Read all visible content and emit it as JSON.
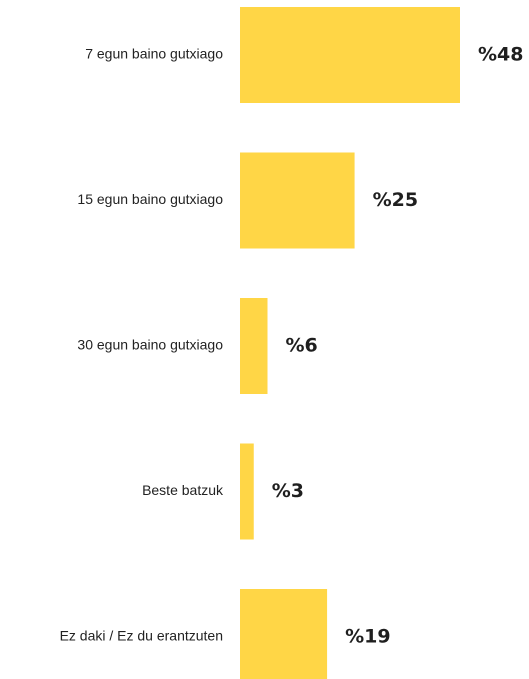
{
  "chart_data": {
    "type": "bar",
    "orientation": "horizontal",
    "categories": [
      "7 egun baino gutxiago",
      "15 egun baino gutxiago",
      "30 egun baino gutxiago",
      "Beste batzuk",
      "Ez daki / Ez du erantzuten"
    ],
    "values": [
      48,
      25,
      6,
      3,
      19
    ],
    "value_labels": [
      "%48",
      "%25",
      "%6",
      "%3",
      "%19"
    ],
    "title": "",
    "xlabel": "",
    "ylabel": "",
    "xlim": [
      0,
      48
    ],
    "grid": false,
    "legend": "none",
    "bar_color": "#FFD646"
  }
}
